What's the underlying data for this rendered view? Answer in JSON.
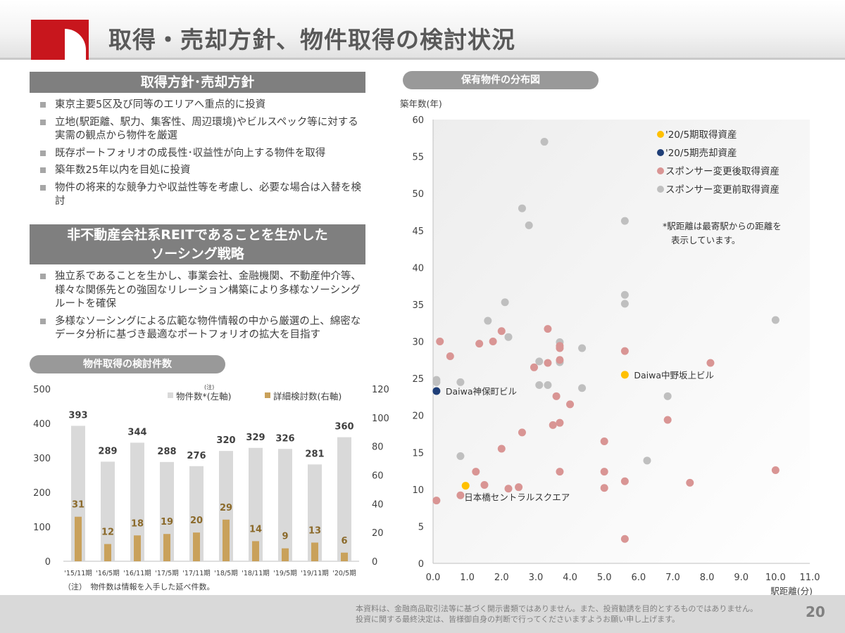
{
  "header": {
    "title": "取得・売却方針、物件取得の検討状況"
  },
  "policy": {
    "title": "取得方針･売却方針",
    "items": [
      "東京主要5区及び同等のエリアへ重点的に投資",
      "立地(駅距離、駅力、集客性、周辺環境)やビルスペック等に対する実需の観点から物件を厳選",
      "既存ポートフォリオの成長性･収益性が向上する物件を取得",
      "築年数25年以内を目処に投資",
      "物件の将来的な競争力や収益性等を考慮し、必要な場合は入替を検討"
    ]
  },
  "sourcing": {
    "title_line1": "非不動産会社系REITであることを生かした",
    "title_line2": "ソーシング戦略",
    "items": [
      "独立系であることを生かし、事業会社、金融機関、不動産仲介等、様々な関係先との強固なリレーション構築により多様なソーシングルートを確保",
      "多様なソーシングによる広範な物件情報の中から厳選の上、綿密なデータ分析に基づき最適なポートフォリオの拡大を目指す"
    ]
  },
  "bar_section": {
    "title": "物件取得の検討件数",
    "note": "（注）　物件数は情報を入手した延べ件数。"
  },
  "scatter_section": {
    "title": "保有物件の分布図"
  },
  "footer": {
    "disclaimer_line1": "本資料は、金融商品取引法等に基づく開示書類ではありません。また、投資勧誘を目的とするものではありません。",
    "disclaimer_line2": "投資に関する最終決定は、皆様御自身の判断で行ってくださいますようお願い申し上げます。",
    "page_number": "20"
  },
  "chart_data": [
    {
      "type": "bar",
      "title": "物件取得の検討件数",
      "categories": [
        "'15/11期",
        "'16/5期",
        "'16/11期",
        "'17/5期",
        "'17/11期",
        "'18/5期",
        "'18/11期",
        "'19/5期",
        "'19/11期",
        "'20/5期"
      ],
      "series": [
        {
          "name": "物件数*(左軸)",
          "axis": "left",
          "color": "#d9d9d9",
          "values": [
            393,
            289,
            344,
            288,
            276,
            320,
            329,
            326,
            281,
            360
          ]
        },
        {
          "name": "詳細検討数(右軸)",
          "axis": "right",
          "color": "#c9a15b",
          "values": [
            31,
            12,
            18,
            19,
            20,
            29,
            14,
            9,
            13,
            6
          ]
        }
      ],
      "legend_note_mark": "(注)",
      "ylim_left": [
        0,
        500
      ],
      "yticks_left": [
        0,
        100,
        200,
        300,
        400,
        500
      ],
      "ylim_right": [
        0,
        120
      ],
      "yticks_right": [
        0,
        20,
        40,
        60,
        80,
        100,
        120
      ]
    },
    {
      "type": "scatter",
      "title": "保有物件の分布図",
      "xlabel": "駅距離(分)",
      "ylabel": "築年数(年)",
      "xlim": [
        0,
        11
      ],
      "ylim": [
        0,
        60
      ],
      "xticks": [
        "0.0",
        "1.0",
        "2.0",
        "3.0",
        "4.0",
        "5.0",
        "6.0",
        "7.0",
        "8.0",
        "9.0",
        "10.0",
        "11.0"
      ],
      "yticks": [
        0,
        5,
        10,
        15,
        20,
        25,
        30,
        35,
        40,
        45,
        50,
        55,
        60
      ],
      "note_line1": "*駅距離は最寄駅からの距離を",
      "note_line2": "表示しています。",
      "series": [
        {
          "name": "'20/5期取得資産",
          "color": "#ffc000",
          "points": [
            [
              0.95,
              10.5
            ],
            [
              5.6,
              25.5
            ]
          ]
        },
        {
          "name": "'20/5期売却資産",
          "color": "#1f3e77",
          "points": [
            [
              0.1,
              23.3
            ]
          ]
        },
        {
          "name": "スポンサー変更後取得資産",
          "color": "#d99594",
          "points": [
            [
              0.1,
              8.5
            ],
            [
              0.2,
              30
            ],
            [
              0.5,
              28
            ],
            [
              0.8,
              9.2
            ],
            [
              1.25,
              12.4
            ],
            [
              1.35,
              29.7
            ],
            [
              1.5,
              10.6
            ],
            [
              1.75,
              30
            ],
            [
              2.0,
              15.5
            ],
            [
              2.0,
              31.4
            ],
            [
              2.2,
              10.1
            ],
            [
              2.5,
              10.3
            ],
            [
              2.6,
              17.7
            ],
            [
              2.95,
              26.5
            ],
            [
              3.35,
              27.1
            ],
            [
              3.35,
              31.7
            ],
            [
              3.5,
              18.7
            ],
            [
              3.6,
              22.6
            ],
            [
              3.7,
              29.4
            ],
            [
              3.7,
              29.1
            ],
            [
              3.7,
              27.5
            ],
            [
              3.7,
              19
            ],
            [
              3.7,
              12.4
            ],
            [
              4.0,
              21.5
            ],
            [
              5.0,
              16.5
            ],
            [
              5.0,
              12.4
            ],
            [
              5.0,
              10.2
            ],
            [
              5.6,
              28.7
            ],
            [
              5.6,
              11.1
            ],
            [
              5.6,
              3.3
            ],
            [
              6.85,
              19.4
            ],
            [
              7.5,
              10.9
            ],
            [
              8.1,
              27.1
            ],
            [
              10.0,
              12.6
            ]
          ]
        },
        {
          "name": "スポンサー変更前取得資産",
          "color": "#bfbfbf",
          "points": [
            [
              0.1,
              24.8
            ],
            [
              0.1,
              24.5
            ],
            [
              0.8,
              24.5
            ],
            [
              0.8,
              14.5
            ],
            [
              1.6,
              32.8
            ],
            [
              2.1,
              35.3
            ],
            [
              2.2,
              30.6
            ],
            [
              2.6,
              48
            ],
            [
              2.8,
              45.7
            ],
            [
              3.1,
              27.3
            ],
            [
              3.1,
              24.1
            ],
            [
              3.25,
              57
            ],
            [
              3.35,
              24.1
            ],
            [
              3.7,
              29.9
            ],
            [
              3.7,
              27.2
            ],
            [
              4.35,
              29.1
            ],
            [
              4.35,
              23.7
            ],
            [
              5.6,
              46.3
            ],
            [
              5.6,
              36.3
            ],
            [
              5.6,
              35.1
            ],
            [
              6.25,
              13.9
            ],
            [
              6.85,
              22.6
            ],
            [
              10.0,
              32.9
            ]
          ]
        }
      ],
      "annotations": [
        {
          "text": "日本橋セントラルスクエア",
          "x": 0.95,
          "y": 10.5
        },
        {
          "text": "Daiwa中野坂上ビル",
          "x": 5.6,
          "y": 25.5
        },
        {
          "text": "Daiwa神保町ビル",
          "x": 0.1,
          "y": 23.3
        }
      ]
    }
  ]
}
